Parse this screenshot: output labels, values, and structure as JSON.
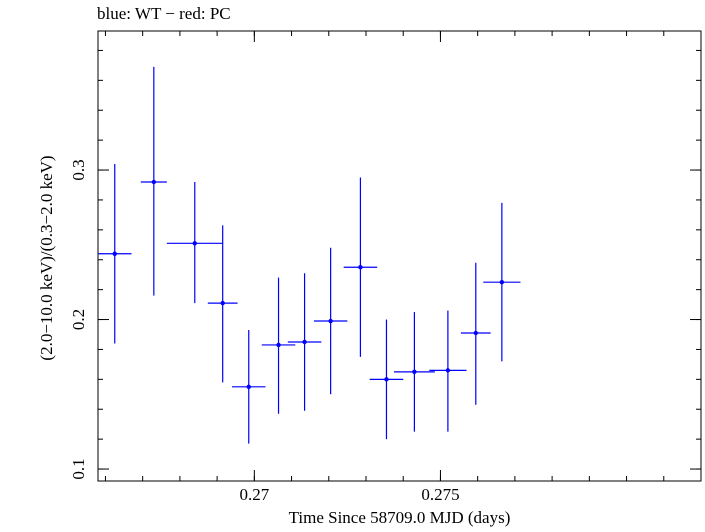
{
  "chart_data": {
    "type": "scatter",
    "title": "blue: WT − red: PC",
    "xlabel": "Time Since 58709.0 MJD (days)",
    "ylabel": "(2.0−10.0 keV)/(0.3−2.0 keV)",
    "xlim": [
      0.2658,
      0.282
    ],
    "ylim": [
      0.092,
      0.393
    ],
    "x_ticks": [
      {
        "value": 0.27,
        "label": "0.27"
      },
      {
        "value": 0.275,
        "label": "0.275"
      }
    ],
    "y_ticks": [
      {
        "value": 0.1,
        "label": "0.1"
      },
      {
        "value": 0.2,
        "label": "0.2"
      },
      {
        "value": 0.3,
        "label": "0.3"
      }
    ],
    "grid": false,
    "series": [
      {
        "color": "#0000ff",
        "points": [
          {
            "x": 0.26625,
            "y": 0.244,
            "xerr": 0.00045,
            "ylo": 0.184,
            "yhi": 0.304
          },
          {
            "x": 0.2673,
            "y": 0.292,
            "xerr": 0.00035,
            "ylo": 0.216,
            "yhi": 0.369
          },
          {
            "x": 0.2684,
            "y": 0.251,
            "xerr": 0.00075,
            "ylo": 0.211,
            "yhi": 0.292
          },
          {
            "x": 0.26915,
            "y": 0.211,
            "xerr": 0.0004,
            "ylo": 0.158,
            "yhi": 0.263
          },
          {
            "x": 0.26985,
            "y": 0.155,
            "xerr": 0.00045,
            "ylo": 0.117,
            "yhi": 0.193
          },
          {
            "x": 0.27065,
            "y": 0.183,
            "xerr": 0.00045,
            "ylo": 0.137,
            "yhi": 0.228
          },
          {
            "x": 0.27135,
            "y": 0.185,
            "xerr": 0.00045,
            "ylo": 0.139,
            "yhi": 0.231
          },
          {
            "x": 0.27205,
            "y": 0.199,
            "xerr": 0.00045,
            "ylo": 0.15,
            "yhi": 0.248
          },
          {
            "x": 0.27285,
            "y": 0.235,
            "xerr": 0.00045,
            "ylo": 0.175,
            "yhi": 0.295
          },
          {
            "x": 0.27355,
            "y": 0.16,
            "xerr": 0.00045,
            "ylo": 0.12,
            "yhi": 0.2
          },
          {
            "x": 0.2743,
            "y": 0.165,
            "xerr": 0.00055,
            "ylo": 0.125,
            "yhi": 0.205
          },
          {
            "x": 0.2752,
            "y": 0.166,
            "xerr": 0.0005,
            "ylo": 0.125,
            "yhi": 0.206
          },
          {
            "x": 0.27595,
            "y": 0.191,
            "xerr": 0.0004,
            "ylo": 0.143,
            "yhi": 0.238
          },
          {
            "x": 0.27665,
            "y": 0.225,
            "xerr": 0.0005,
            "ylo": 0.172,
            "yhi": 0.278
          }
        ]
      }
    ]
  }
}
